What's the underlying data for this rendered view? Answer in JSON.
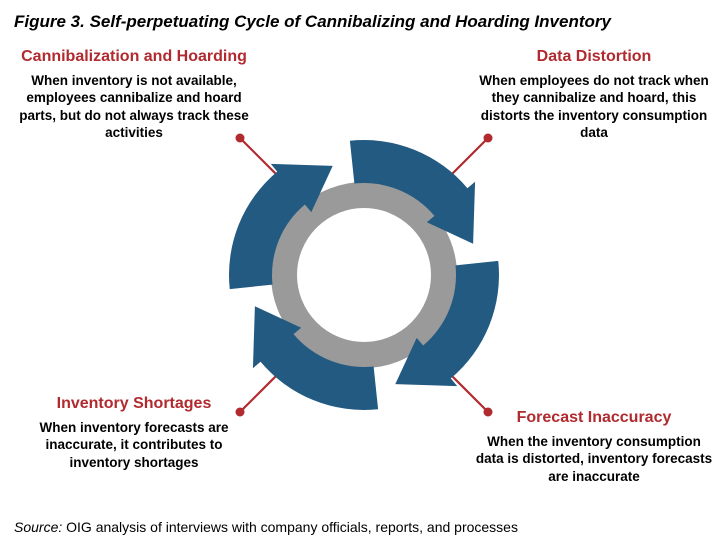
{
  "figure_title": "Figure 3. Self-perpetuating Cycle of Cannibalizing and Hoarding Inventory",
  "source_label": "Source:",
  "source_text": " OIG analysis of interviews with company officials, reports, and processes",
  "quads": {
    "tl": {
      "title": "Cannibalization and Hoarding",
      "body": "When inventory is not available, employees cannibalize and hoard parts, but do not always track these activities"
    },
    "tr": {
      "title": "Data Distortion",
      "body": "When employees do not track when they cannibalize and hoard, this distorts the inventory consumption data"
    },
    "br": {
      "title": "Forecast Inaccuracy",
      "body": "When the inventory consumption data is distorted, inventory forecasts are inaccurate"
    },
    "bl": {
      "title": "Inventory Shortages",
      "body": "When inventory forecasts are inaccurate, it contributes to inventory shortages"
    }
  },
  "colors": {
    "title_red": "#b02a2f",
    "arrow_blue": "#235a82",
    "inner_grey": "#9a9a9a",
    "connector": "#b02a2f",
    "text_black": "#000000"
  },
  "cycle": {
    "type": "flowchart",
    "direction": "clockwise",
    "segments": 4,
    "outer_radius": 130,
    "inner_radius": 60,
    "center_fill": "#ffffff"
  }
}
